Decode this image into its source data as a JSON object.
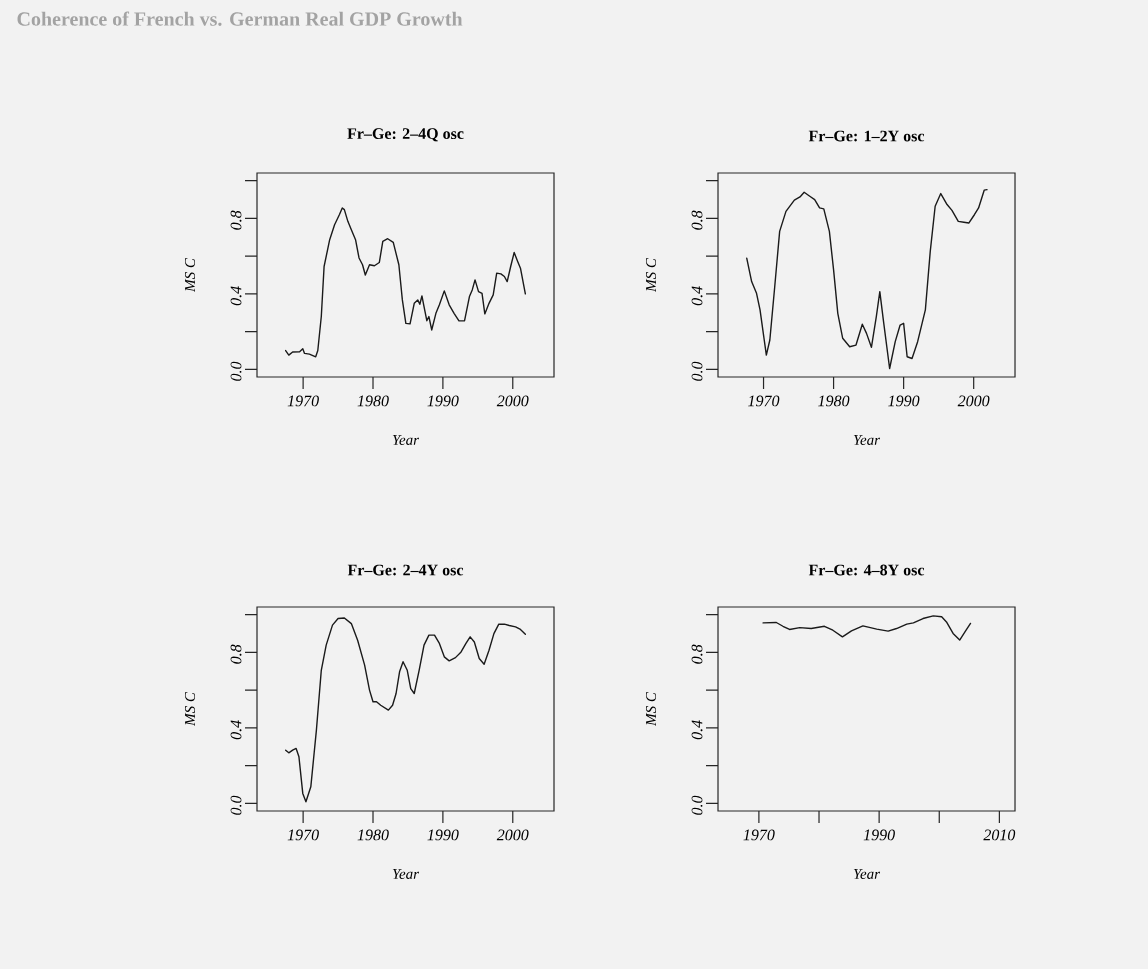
{
  "chart_data": [
    {
      "type": "other",
      "title": "Coherence of French vs. German Real GDP Growth"
    },
    {
      "type": "line",
      "title": "Fr–Ge: 2–4Q osc",
      "xlabel": "Year",
      "ylabel": "MS C",
      "xlim": [
        1963.4,
        2005.9
      ],
      "ylim": [
        -0.04,
        1.04
      ],
      "xticks": [
        1970,
        1980,
        1990,
        2000
      ],
      "yticks": [
        {
          "value": 0,
          "label": "0.0"
        },
        {
          "value": 0.2,
          "label": null
        },
        {
          "value": 0.4,
          "label": "0.4"
        },
        {
          "value": 0.6,
          "label": null
        },
        {
          "value": 0.8,
          "label": "0.8"
        },
        {
          "value": 1.0,
          "label": null
        }
      ],
      "series": [
        {
          "color": "#1a1a1a",
          "x": [
            1967.5,
            1967.95,
            1968.5,
            1969.5,
            1969.95,
            1970.2,
            1970.9,
            1971.8,
            1972.1,
            1972.6,
            1973.0,
            1973.8,
            1974.5,
            1975.2,
            1975.6,
            1975.9,
            1976.4,
            1976.9,
            1977.5,
            1978.0,
            1978.5,
            1978.9,
            1979.5,
            1980.2,
            1980.9,
            1981.4,
            1982.1,
            1982.9,
            1983.7,
            1984.2,
            1984.7,
            1985.3,
            1985.9,
            1986.4,
            1986.7,
            1987.0,
            1987.3,
            1987.7,
            1988.0,
            1988.4,
            1989.0,
            1989.5,
            1990.2,
            1990.9,
            1991.6,
            1992.3,
            1993.1,
            1993.8,
            1994.2,
            1994.6,
            1995.1,
            1995.6,
            1996.0,
            1996.6,
            1997.2,
            1997.7,
            1998.3,
            1998.8,
            1999.2,
            1999.7,
            2000.2,
            2000.7,
            2001.1,
            2001.8
          ],
          "values": [
            0.1,
            0.076,
            0.092,
            0.094,
            0.11,
            0.085,
            0.081,
            0.067,
            0.1,
            0.28,
            0.545,
            0.687,
            0.766,
            0.82,
            0.855,
            0.846,
            0.784,
            0.74,
            0.687,
            0.59,
            0.554,
            0.5,
            0.554,
            0.549,
            0.566,
            0.678,
            0.692,
            0.673,
            0.554,
            0.368,
            0.244,
            0.241,
            0.35,
            0.368,
            0.345,
            0.389,
            0.333,
            0.258,
            0.28,
            0.209,
            0.297,
            0.342,
            0.416,
            0.342,
            0.297,
            0.257,
            0.258,
            0.386,
            0.421,
            0.474,
            0.412,
            0.403,
            0.294,
            0.35,
            0.395,
            0.51,
            0.506,
            0.492,
            0.465,
            0.545,
            0.619,
            0.572,
            0.536,
            0.4
          ]
        }
      ]
    },
    {
      "type": "line",
      "title": "Fr–Ge: 1–2Y osc",
      "xlabel": "Year",
      "ylabel": "MS C",
      "xlim": [
        1963.5,
        2005.9
      ],
      "ylim": [
        -0.04,
        1.04
      ],
      "xticks": [
        1970,
        1980,
        1990,
        2000
      ],
      "yticks": [
        {
          "value": 0,
          "label": "0.0"
        },
        {
          "value": 0.2,
          "label": null
        },
        {
          "value": 0.4,
          "label": "0.4"
        },
        {
          "value": 0.6,
          "label": null
        },
        {
          "value": 0.8,
          "label": "0.8"
        },
        {
          "value": 1.0,
          "label": null
        }
      ],
      "series": [
        {
          "color": "#1a1a1a",
          "x": [
            1967.6,
            1968.3,
            1969.0,
            1969.5,
            1970.4,
            1970.9,
            1971.6,
            1972.3,
            1973.2,
            1974.4,
            1975.2,
            1975.8,
            1976.6,
            1977.3,
            1978.0,
            1978.6,
            1979.4,
            1980.0,
            1980.6,
            1981.3,
            1982.3,
            1983.2,
            1984.1,
            1984.7,
            1985.4,
            1986.1,
            1986.6,
            1987.1,
            1988.0,
            1988.8,
            1989.5,
            1990.0,
            1990.5,
            1991.2,
            1992.0,
            1993.1,
            1993.8,
            1994.5,
            1995.3,
            1996.2,
            1996.9,
            1997.8,
            1998.6,
            1999.3,
            2000.1,
            2000.7,
            2001.5,
            2001.9
          ],
          "values": [
            0.589,
            0.465,
            0.403,
            0.315,
            0.076,
            0.156,
            0.439,
            0.731,
            0.837,
            0.896,
            0.913,
            0.938,
            0.917,
            0.899,
            0.855,
            0.85,
            0.731,
            0.527,
            0.297,
            0.165,
            0.12,
            0.129,
            0.239,
            0.191,
            0.117,
            0.28,
            0.412,
            0.262,
            0.005,
            0.147,
            0.235,
            0.244,
            0.067,
            0.058,
            0.147,
            0.315,
            0.625,
            0.864,
            0.931,
            0.873,
            0.842,
            0.784,
            0.779,
            0.775,
            0.819,
            0.855,
            0.949,
            0.952
          ]
        }
      ]
    },
    {
      "type": "line",
      "title": "Fr–Ge: 2–4Y osc",
      "xlabel": "Year",
      "ylabel": "MS C",
      "xlim": [
        1963.4,
        2005.9
      ],
      "ylim": [
        -0.04,
        1.04
      ],
      "xticks": [
        1970,
        1980,
        1990,
        2000
      ],
      "yticks": [
        {
          "value": 0,
          "label": "0.0"
        },
        {
          "value": 0.2,
          "label": null
        },
        {
          "value": 0.4,
          "label": "0.4"
        },
        {
          "value": 0.6,
          "label": null
        },
        {
          "value": 0.8,
          "label": "0.8"
        },
        {
          "value": 1.0,
          "label": null
        }
      ],
      "series": [
        {
          "color": "#1a1a1a",
          "x": [
            1967.5,
            1967.95,
            1968.5,
            1969.0,
            1969.4,
            1969.95,
            1970.4,
            1971.1,
            1971.9,
            1972.6,
            1973.3,
            1974.2,
            1975.0,
            1975.9,
            1976.9,
            1977.8,
            1978.8,
            1979.5,
            1980.0,
            1980.5,
            1981.1,
            1982.2,
            1982.8,
            1983.3,
            1983.8,
            1984.3,
            1984.9,
            1985.4,
            1985.9,
            1986.6,
            1987.3,
            1988.0,
            1988.8,
            1989.5,
            1990.2,
            1990.9,
            1991.8,
            1992.6,
            1993.3,
            1993.9,
            1994.5,
            1995.2,
            1995.9,
            1996.6,
            1997.3,
            1998.0,
            1998.8,
            1999.5,
            2000.4,
            2001.1,
            2001.8
          ],
          "values": [
            0.282,
            0.268,
            0.282,
            0.291,
            0.247,
            0.053,
            0.009,
            0.088,
            0.388,
            0.705,
            0.838,
            0.944,
            0.979,
            0.982,
            0.952,
            0.864,
            0.732,
            0.6,
            0.538,
            0.538,
            0.52,
            0.494,
            0.52,
            0.582,
            0.697,
            0.75,
            0.705,
            0.608,
            0.582,
            0.705,
            0.838,
            0.891,
            0.891,
            0.847,
            0.776,
            0.755,
            0.772,
            0.802,
            0.847,
            0.882,
            0.855,
            0.767,
            0.737,
            0.811,
            0.899,
            0.949,
            0.949,
            0.942,
            0.935,
            0.921,
            0.896
          ]
        }
      ]
    },
    {
      "type": "line",
      "title": "Fr–Ge: 4–8Y osc",
      "xlabel": "Year",
      "ylabel": "MS C",
      "xlim": [
        1963.2,
        2012.6
      ],
      "ylim": [
        -0.04,
        1.04
      ],
      "xticks": [
        1970,
        {
          "value": 1980,
          "label": null
        },
        1990,
        {
          "value": 2000,
          "label": null
        },
        2010
      ],
      "yticks": [
        {
          "value": 0,
          "label": "0.0"
        },
        {
          "value": 0.2,
          "label": null
        },
        {
          "value": 0.4,
          "label": "0.4"
        },
        {
          "value": 0.6,
          "label": null
        },
        {
          "value": 0.8,
          "label": "0.8"
        },
        {
          "value": 1.0,
          "label": null
        }
      ],
      "series": [
        {
          "color": "#1a1a1a",
          "x": [
            1970.7,
            1972.9,
            1974.0,
            1975.1,
            1976.8,
            1978.7,
            1980.9,
            1982.3,
            1983.9,
            1985.4,
            1987.3,
            1989.6,
            1991.5,
            1992.9,
            1994.6,
            1995.7,
            1997.3,
            1999.0,
            2000.4,
            2001.2,
            2002.3,
            2003.4,
            2004.3,
            2005.2
          ],
          "values": [
            0.956,
            0.958,
            0.938,
            0.921,
            0.931,
            0.926,
            0.938,
            0.917,
            0.882,
            0.914,
            0.94,
            0.923,
            0.912,
            0.926,
            0.949,
            0.956,
            0.979,
            0.993,
            0.988,
            0.961,
            0.9,
            0.865,
            0.909,
            0.953
          ]
        }
      ]
    }
  ]
}
